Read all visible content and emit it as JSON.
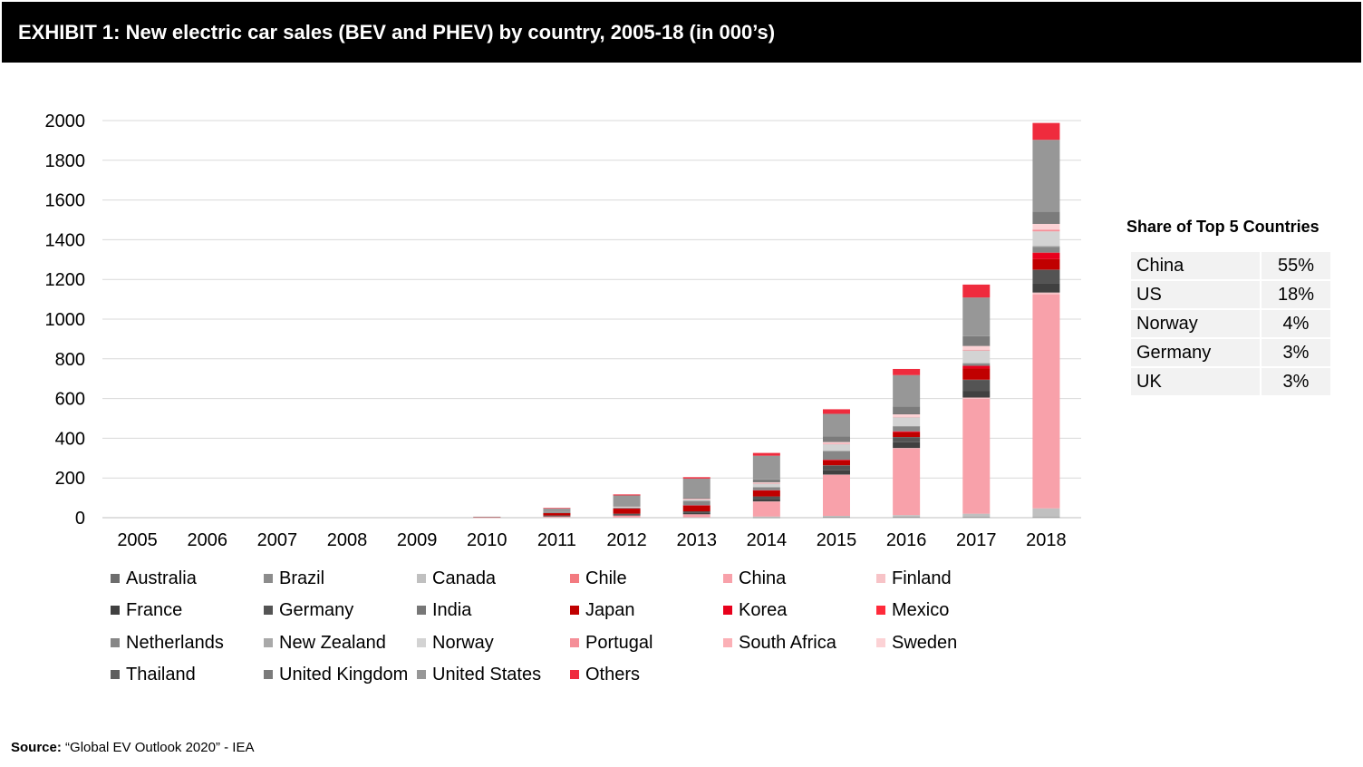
{
  "header": {
    "title": "EXHIBIT 1: New electric car sales (BEV and PHEV) by country, 2005-18 (in 000’s)"
  },
  "chart_data": {
    "type": "bar",
    "stacked": true,
    "categories": [
      "2005",
      "2006",
      "2007",
      "2008",
      "2009",
      "2010",
      "2011",
      "2012",
      "2013",
      "2014",
      "2015",
      "2016",
      "2017",
      "2018"
    ],
    "ylim": [
      0,
      2000
    ],
    "yticks": [
      "0",
      "200",
      "400",
      "600",
      "800",
      "1000",
      "1200",
      "1400",
      "1600",
      "1800",
      "2000"
    ],
    "grid": "horizontal",
    "legend_position": "bottom",
    "series": [
      {
        "name": "Australia",
        "color": "#6d6d6d",
        "values": [
          0,
          0,
          0,
          0,
          0,
          0,
          0,
          0,
          0,
          1,
          2,
          2,
          2,
          2
        ]
      },
      {
        "name": "Brazil",
        "color": "#8c8c8c",
        "values": [
          0,
          0,
          0,
          0,
          0,
          0,
          0,
          0,
          0,
          0,
          0,
          0,
          0,
          1
        ]
      },
      {
        "name": "Canada",
        "color": "#c0c0c0",
        "values": [
          0,
          0,
          0,
          0,
          0,
          0,
          1,
          1,
          2,
          5,
          7,
          11,
          18,
          44
        ]
      },
      {
        "name": "Chile",
        "color": "#f37a80",
        "values": [
          0,
          0,
          0,
          0,
          0,
          0,
          0,
          0,
          0,
          0,
          0,
          0,
          0,
          0
        ]
      },
      {
        "name": "China",
        "color": "#f8a1aa",
        "values": [
          0,
          0,
          0,
          0,
          0,
          1,
          5,
          10,
          15,
          75,
          207,
          336,
          579,
          1078
        ]
      },
      {
        "name": "Finland",
        "color": "#f7c3c7",
        "values": [
          0,
          0,
          0,
          0,
          0,
          0,
          0,
          0,
          0,
          1,
          1,
          2,
          6,
          9
        ]
      },
      {
        "name": "France",
        "color": "#404040",
        "values": [
          0,
          0,
          0,
          0,
          0,
          0,
          3,
          6,
          9,
          12,
          22,
          29,
          34,
          46
        ]
      },
      {
        "name": "Germany",
        "color": "#545454",
        "values": [
          0,
          0,
          0,
          0,
          0,
          0,
          2,
          3,
          6,
          13,
          24,
          25,
          55,
          68
        ]
      },
      {
        "name": "India",
        "color": "#777777",
        "values": [
          0,
          0,
          0,
          0,
          0,
          0,
          0,
          0,
          0,
          0,
          1,
          1,
          1,
          1
        ]
      },
      {
        "name": "Japan",
        "color": "#c00000",
        "values": [
          0,
          0,
          0,
          0,
          0,
          2,
          13,
          25,
          29,
          30,
          25,
          24,
          56,
          53
        ]
      },
      {
        "name": "Korea",
        "color": "#e8001c",
        "values": [
          0,
          0,
          0,
          0,
          0,
          0,
          0,
          1,
          1,
          1,
          3,
          5,
          14,
          32
        ]
      },
      {
        "name": "Mexico",
        "color": "#ff2a3a",
        "values": [
          0,
          0,
          0,
          0,
          0,
          0,
          0,
          0,
          0,
          0,
          0,
          0,
          0,
          1
        ]
      },
      {
        "name": "Netherlands",
        "color": "#878787",
        "values": [
          0,
          0,
          0,
          0,
          0,
          0,
          1,
          5,
          23,
          15,
          44,
          25,
          11,
          28
        ]
      },
      {
        "name": "New Zealand",
        "color": "#a9a9a9",
        "values": [
          0,
          0,
          0,
          0,
          0,
          0,
          0,
          0,
          0,
          0,
          0,
          1,
          4,
          6
        ]
      },
      {
        "name": "Norway",
        "color": "#d3d3d3",
        "values": [
          0,
          0,
          0,
          0,
          0,
          1,
          2,
          4,
          8,
          20,
          34,
          45,
          62,
          73
        ]
      },
      {
        "name": "Portugal",
        "color": "#f58f98",
        "values": [
          0,
          0,
          0,
          0,
          0,
          0,
          0,
          0,
          1,
          1,
          2,
          2,
          4,
          9
        ]
      },
      {
        "name": "South Africa",
        "color": "#fbb0b6",
        "values": [
          0,
          0,
          0,
          0,
          0,
          0,
          0,
          0,
          0,
          0,
          0,
          0,
          0,
          0
        ]
      },
      {
        "name": "Sweden",
        "color": "#fcd2d5",
        "values": [
          0,
          0,
          0,
          0,
          0,
          0,
          0,
          1,
          2,
          4,
          9,
          14,
          19,
          29
        ]
      },
      {
        "name": "Thailand",
        "color": "#5f5f5f",
        "values": [
          0,
          0,
          0,
          0,
          0,
          0,
          0,
          0,
          0,
          0,
          0,
          1,
          2,
          2
        ]
      },
      {
        "name": "United Kingdom",
        "color": "#7b7b7b",
        "values": [
          0,
          0,
          0,
          0,
          0,
          0,
          1,
          3,
          4,
          15,
          28,
          37,
          47,
          60
        ]
      },
      {
        "name": "United States",
        "color": "#979797",
        "values": [
          0,
          0,
          0,
          0,
          0,
          1,
          18,
          53,
          97,
          119,
          114,
          158,
          195,
          361
        ]
      },
      {
        "name": "Others",
        "color": "#ef2b3d",
        "values": [
          0,
          0,
          0,
          0,
          0,
          0,
          3,
          5,
          7,
          14,
          23,
          31,
          65,
          85
        ]
      }
    ]
  },
  "share_table": {
    "title": "Share of Top 5 Countries",
    "rows": [
      {
        "country": "China",
        "share": "55%"
      },
      {
        "country": "US",
        "share": "18%"
      },
      {
        "country": "Norway",
        "share": "4%"
      },
      {
        "country": "Germany",
        "share": "3%"
      },
      {
        "country": "UK",
        "share": "3%"
      }
    ]
  },
  "source": {
    "label": "Source:",
    "text": "“Global EV Outlook 2020” - IEA"
  }
}
